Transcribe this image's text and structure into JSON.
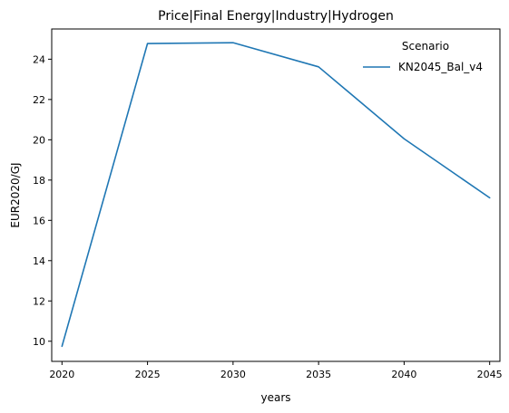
{
  "chart_data": {
    "type": "line",
    "title": "Price|Final Energy|Industry|Hydrogen",
    "xlabel": "years",
    "ylabel": "EUR2020/GJ",
    "x": [
      2020,
      2025,
      2030,
      2035,
      2040,
      2045
    ],
    "x_ticks": [
      "2020",
      "2025",
      "2030",
      "2035",
      "2040",
      "2045"
    ],
    "y_ticks": [
      "10",
      "12",
      "14",
      "16",
      "18",
      "20",
      "22",
      "24"
    ],
    "xlim": [
      2019.4,
      2045.6
    ],
    "ylim": [
      9.0,
      25.5
    ],
    "grid": false,
    "legend": {
      "title": "Scenario",
      "placement": "top-right"
    },
    "series": [
      {
        "name": "KN2045_Bal_v4",
        "color": "#1f77b4",
        "values": [
          9.75,
          24.78,
          24.82,
          23.62,
          20.05,
          17.12
        ]
      }
    ]
  }
}
